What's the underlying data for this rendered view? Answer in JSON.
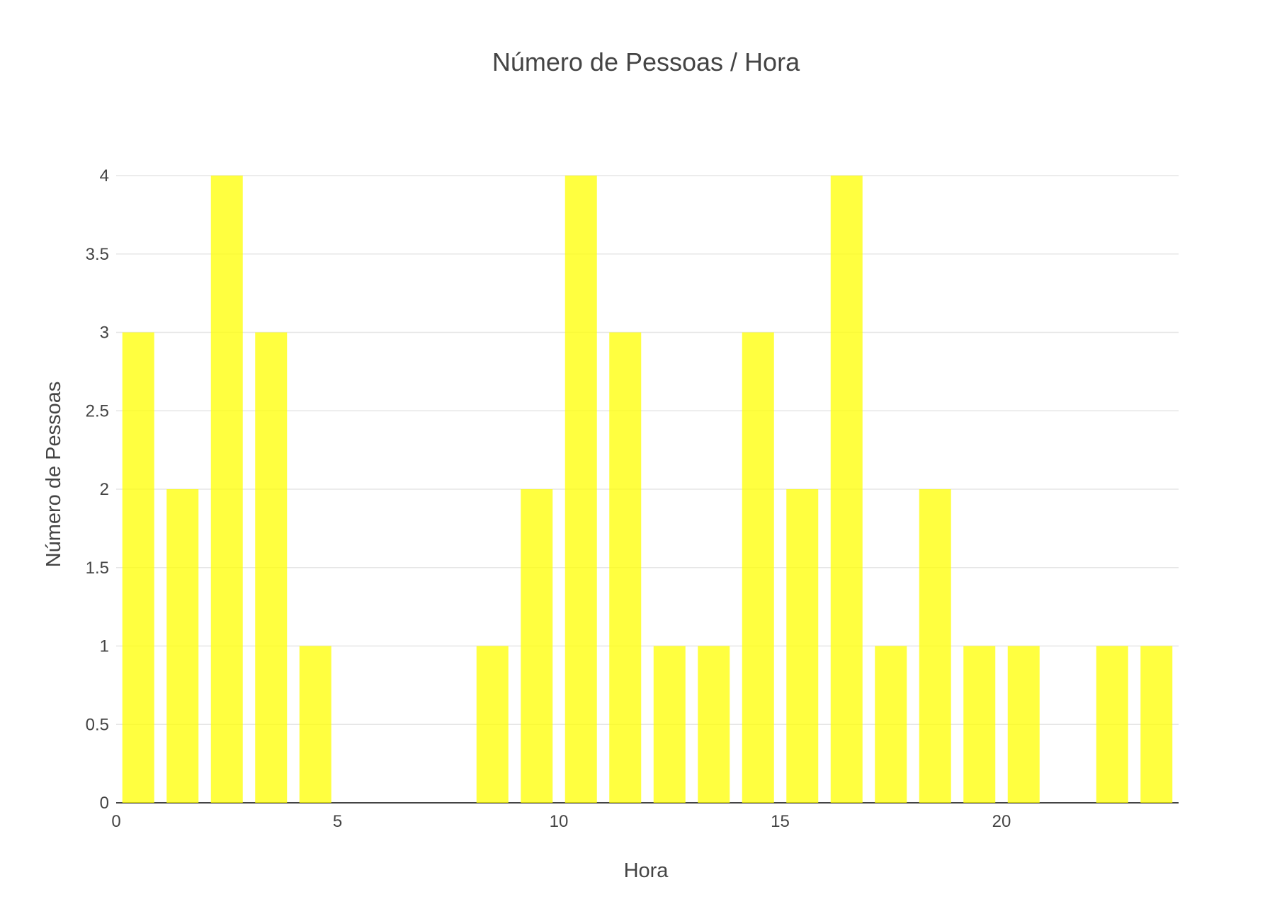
{
  "chart_data": {
    "type": "bar",
    "title": "Número de Pessoas / Hora",
    "xlabel": "Hora",
    "ylabel": "Número de Pessoas",
    "x": [
      0,
      1,
      2,
      3,
      4,
      5,
      6,
      7,
      8,
      9,
      10,
      11,
      12,
      13,
      14,
      15,
      16,
      17,
      18,
      19,
      20,
      21,
      22,
      23
    ],
    "values": [
      3,
      2,
      4,
      3,
      1,
      0,
      0,
      0,
      1,
      2,
      4,
      3,
      1,
      1,
      3,
      2,
      4,
      1,
      2,
      1,
      1,
      0,
      1,
      1
    ],
    "xlim": [
      0,
      24
    ],
    "ylim": [
      0,
      4
    ],
    "x_ticks": [
      "0",
      "5",
      "10",
      "15",
      "20"
    ],
    "y_ticks": [
      "0",
      "0.5",
      "1",
      "1.5",
      "2",
      "2.5",
      "3",
      "3.5",
      "4"
    ],
    "bar_color": "#ffff00",
    "bar_opacity": 0.75,
    "grid": true,
    "legend": "none"
  }
}
